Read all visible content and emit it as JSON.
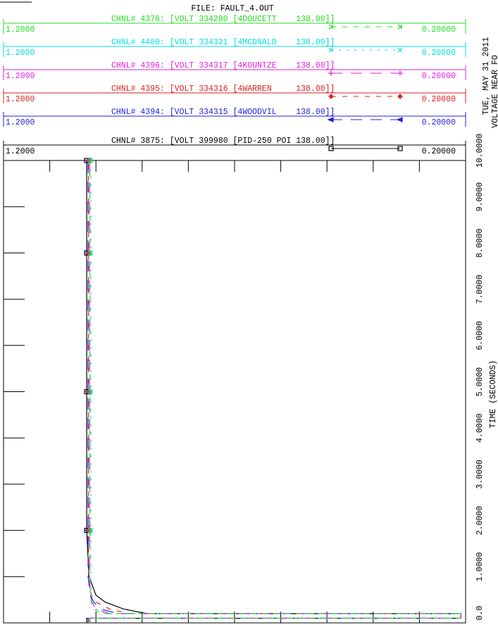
{
  "chart_data": {
    "type": "line",
    "title": "FILE: FAULT_4.OUT",
    "date": "TUE, MAY 31 2011",
    "subtitle": "VOLTAGE NEAR FO",
    "x_label": "TIME (SECONDS)",
    "x": [
      0,
      0.1,
      0.1,
      0.2,
      0.2,
      0.3,
      0.45,
      0.6,
      1,
      2,
      3,
      4,
      5,
      6,
      7,
      8,
      9,
      10
    ],
    "xlim": [
      0,
      10
    ],
    "xticks": [
      {
        "value": 0,
        "label": "0.0"
      },
      {
        "value": 1,
        "label": "1.0000"
      },
      {
        "value": 2,
        "label": "2.0000"
      },
      {
        "value": 3,
        "label": "3.0000"
      },
      {
        "value": 4,
        "label": "4.0000"
      },
      {
        "value": 5,
        "label": "5.0000"
      },
      {
        "value": 6,
        "label": "6.0000"
      },
      {
        "value": 7,
        "label": "7.0000"
      },
      {
        "value": 8,
        "label": "8.0000"
      },
      {
        "value": 9,
        "label": "9.0000"
      },
      {
        "value": 10,
        "label": "10.0000"
      }
    ],
    "ylim": [
      1.2,
      0.2
    ],
    "series": [
      {
        "name": "CHNL# 4376: [VOLT 334280 [4DOUCETT    138.00]]",
        "color": "#22dd22",
        "linestyle": "dashed",
        "marker": "arrow",
        "yticks": [
          {
            "value": 1.2,
            "label": "1.2000"
          },
          {
            "value": 0.2,
            "label": "0.20000"
          }
        ],
        "values": [
          1.015,
          1.015,
          0.21,
          0.21,
          0.99,
          1.005,
          1.01,
          1.012,
          1.013,
          1.013,
          1.013,
          1.013,
          1.013,
          1.013,
          1.013,
          1.013,
          1.013,
          1.013
        ]
      },
      {
        "name": "CHNL# 4400: [VOLT 334321 [4MCDNALD    138.00]]",
        "color": "#00dddd",
        "linestyle": "dotted",
        "marker": "x",
        "yticks": [
          {
            "value": 1.2,
            "label": "1.2000"
          },
          {
            "value": 0.2,
            "label": "0.20000"
          }
        ],
        "values": [
          1.012,
          1.012,
          0.21,
          0.21,
          0.98,
          1.0,
          1.008,
          1.01,
          1.011,
          1.011,
          1.011,
          1.011,
          1.011,
          1.011,
          1.011,
          1.011,
          1.011,
          1.011
        ]
      },
      {
        "name": "CHNL# 4396: [VOLT 334317 [4KOUNTZE    138.00]]",
        "color": "#dd22dd",
        "linestyle": "longdash",
        "marker": "plus",
        "yticks": [
          {
            "value": 1.2,
            "label": "1.2000"
          },
          {
            "value": 0.2,
            "label": "0.20000"
          }
        ],
        "values": [
          1.014,
          1.014,
          0.21,
          0.21,
          0.97,
          1.0,
          1.009,
          1.012,
          1.014,
          1.014,
          1.014,
          1.014,
          1.014,
          1.014,
          1.014,
          1.014,
          1.014,
          1.014
        ]
      },
      {
        "name": "CHNL# 4395: [VOLT 334316 [4WARREN     138.00]]",
        "color": "#dd2222",
        "linestyle": "dashed",
        "marker": "diamond",
        "yticks": [
          {
            "value": 1.2,
            "label": "1.2000"
          },
          {
            "value": 0.2,
            "label": "0.20000"
          }
        ],
        "values": [
          1.016,
          1.016,
          0.21,
          0.21,
          0.93,
          0.97,
          1.0,
          1.01,
          1.016,
          1.016,
          1.016,
          1.016,
          1.016,
          1.016,
          1.016,
          1.016,
          1.016,
          1.016
        ]
      },
      {
        "name": "CHNL# 4394: [VOLT 334315 [4WOODVIL    138.00]]",
        "color": "#2222dd",
        "linestyle": "longdash",
        "marker": "triangle",
        "yticks": [
          {
            "value": 1.2,
            "label": "1.2000"
          },
          {
            "value": 0.2,
            "label": "0.20000"
          }
        ],
        "values": [
          1.017,
          1.017,
          0.21,
          0.21,
          0.95,
          0.99,
          1.005,
          1.012,
          1.017,
          1.017,
          1.017,
          1.017,
          1.017,
          1.017,
          1.017,
          1.017,
          1.017,
          1.017
        ]
      },
      {
        "name": "CHNL# 3875: [VOLT 399980 [PID-250 POI 138.00]]",
        "color": "#000000",
        "linestyle": "solid",
        "marker": "square",
        "yticks": [
          {
            "value": 1.2,
            "label": "1.2000"
          },
          {
            "value": 0.2,
            "label": "0.20000"
          }
        ],
        "values": [
          1.02,
          1.02,
          0.21,
          0.21,
          0.89,
          0.94,
          0.98,
          1.0,
          1.015,
          1.02,
          1.02,
          1.02,
          1.02,
          1.02,
          1.02,
          1.02,
          1.02,
          1.02
        ]
      }
    ]
  }
}
